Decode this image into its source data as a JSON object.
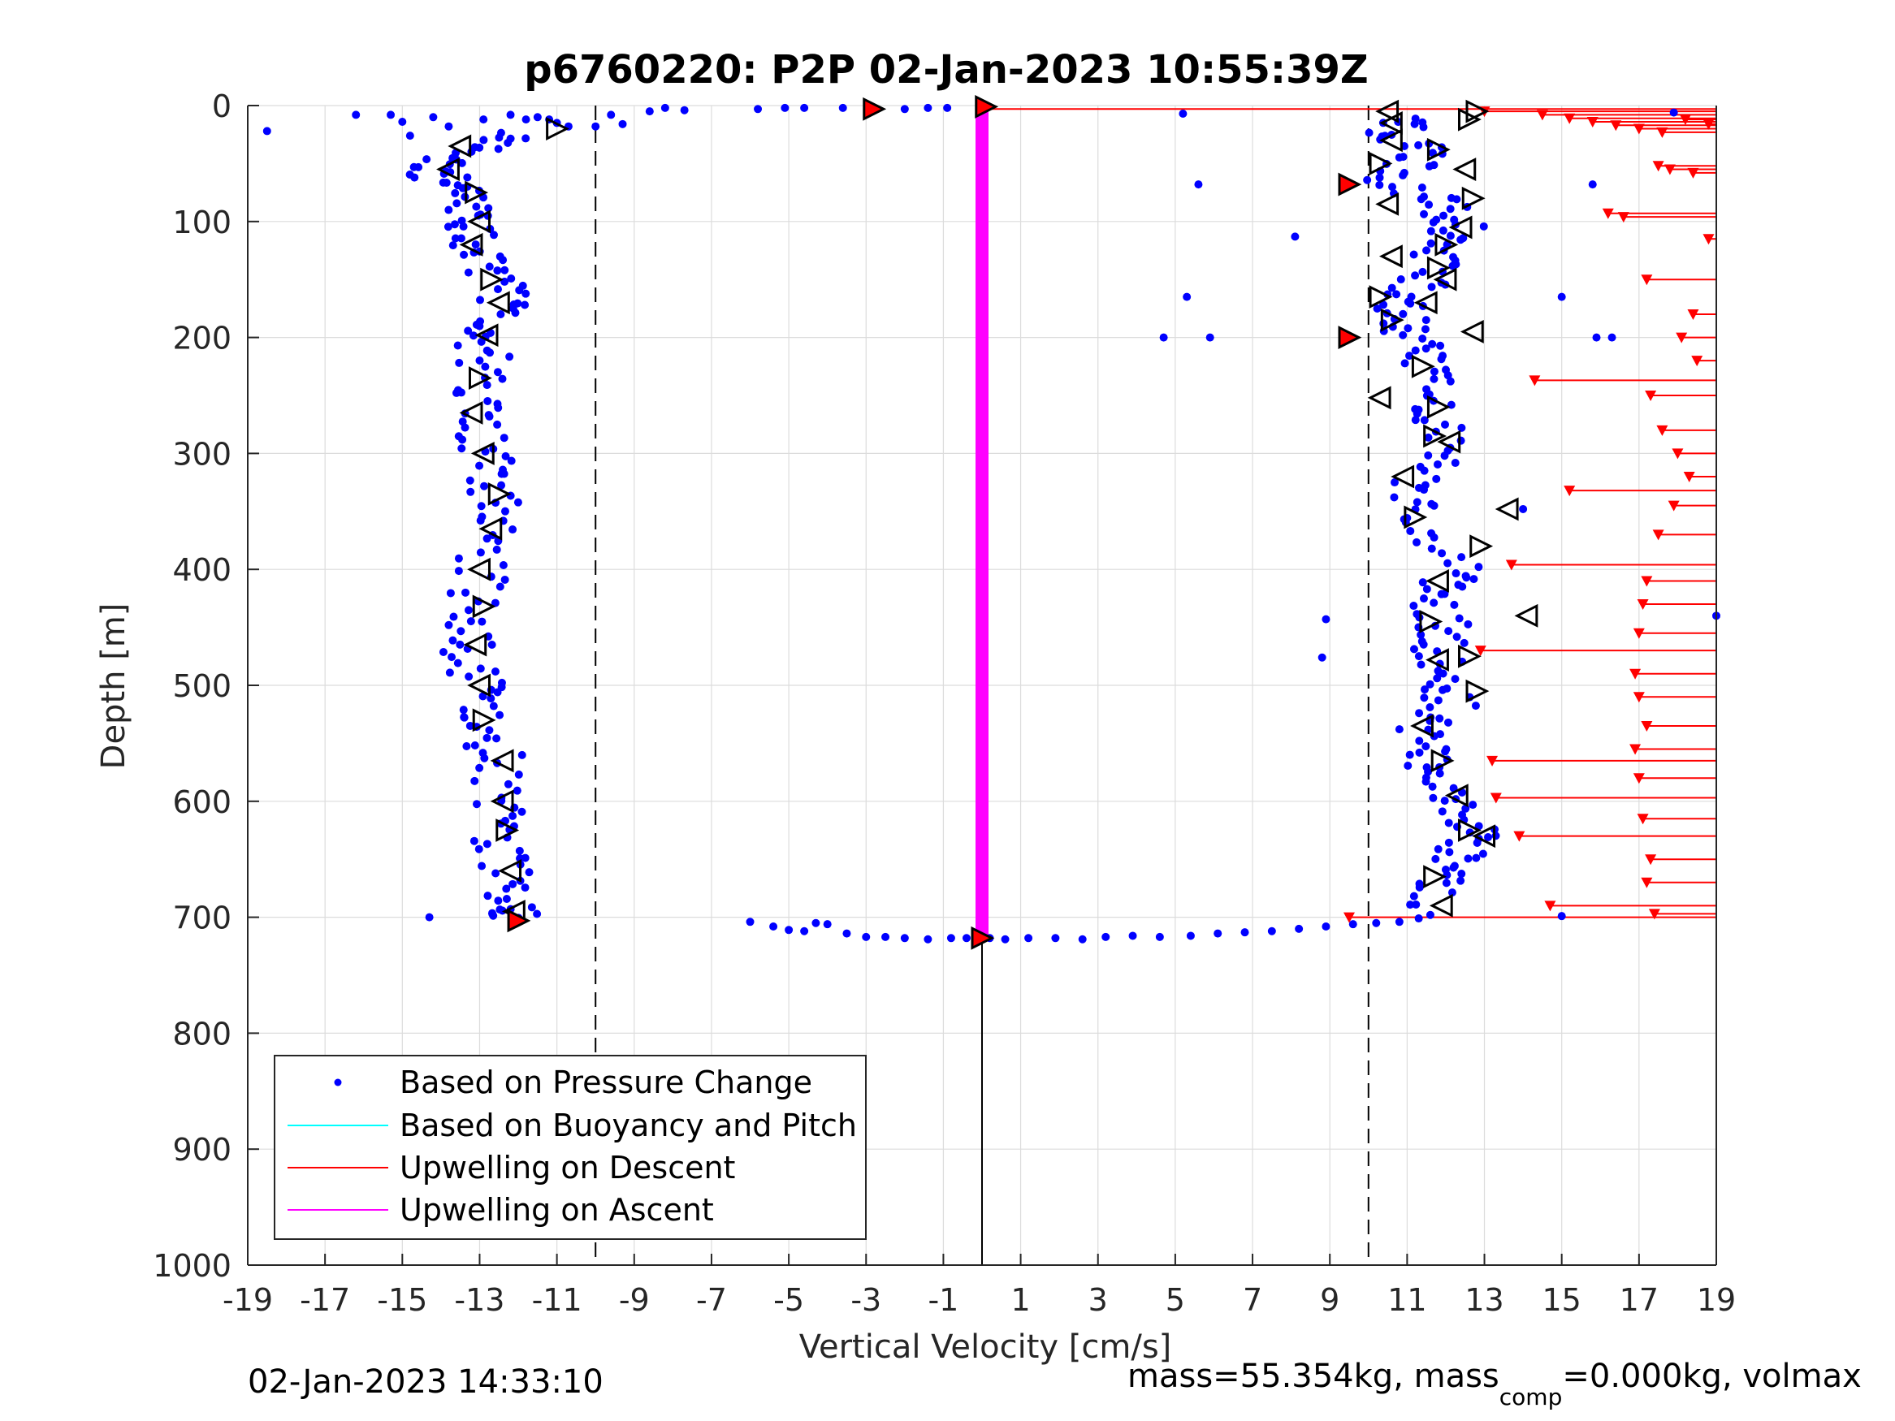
{
  "chart_data": {
    "type": "scatter",
    "title": "p6760220: P2P 02-Jan-2023 10:55:39Z",
    "xlabel": "Vertical Velocity [cm/s]",
    "ylabel": "Depth [m]",
    "xlim": [
      -19,
      19
    ],
    "ylim": [
      0,
      1000
    ],
    "y_reversed": true,
    "grid": true,
    "x_ticks": [
      -19,
      -17,
      -15,
      -13,
      -11,
      -9,
      -7,
      -5,
      -3,
      -1,
      1,
      3,
      5,
      7,
      9,
      11,
      13,
      15,
      17,
      19
    ],
    "x_tick_labels": [
      "-19",
      "-17",
      "-15",
      "-13",
      "-11",
      "-9",
      "-7",
      "-5",
      "-3",
      "-1",
      "1",
      "3",
      "5",
      "7",
      "9",
      "11",
      "13",
      "15",
      "17",
      "19"
    ],
    "y_ticks": [
      0,
      100,
      200,
      300,
      400,
      500,
      600,
      700,
      800,
      900,
      1000
    ],
    "y_tick_labels": [
      "0",
      "100",
      "200",
      "300",
      "400",
      "500",
      "600",
      "700",
      "800",
      "900",
      "1000"
    ],
    "reference_lines": {
      "dashed_x": [
        -10,
        10
      ],
      "solid_x": 0,
      "solid_x_depth_range": [
        720,
        1000
      ]
    },
    "legend": {
      "placement": "bottom-left",
      "entries": [
        {
          "label": "Based on Pressure Change",
          "marker": "dot",
          "color": "#0000ff"
        },
        {
          "label": "Based on Buoyancy and Pitch",
          "marker": "line",
          "color": "#00ffff"
        },
        {
          "label": "Upwelling on Descent",
          "marker": "line",
          "color": "#ff0000"
        },
        {
          "label": "Upwelling on Ascent",
          "marker": "line",
          "color": "#ff00ff"
        }
      ]
    },
    "colors": {
      "pressure": "#0000ff",
      "descent_upwelling": "#ff0000",
      "ascent_upwelling": "#ff00ff",
      "marker_fill": "#ff0000",
      "grid": "#dcdcdc",
      "axis": "#262626"
    },
    "series": [
      {
        "name": "Based on Pressure Change",
        "kind": "scatter",
        "surface_points": [
          [
            -18.5,
            22
          ],
          [
            -16.2,
            8
          ],
          [
            -15.3,
            8
          ],
          [
            -15.0,
            14
          ],
          [
            -14.8,
            26
          ],
          [
            -14.2,
            10
          ],
          [
            -13.8,
            18
          ],
          [
            -12.9,
            12
          ],
          [
            -12.2,
            8
          ],
          [
            -11.8,
            12
          ],
          [
            -11.5,
            10
          ],
          [
            -11.2,
            12
          ],
          [
            -11.0,
            15
          ],
          [
            -10.7,
            18
          ],
          [
            -10.0,
            18
          ],
          [
            -9.6,
            8
          ],
          [
            -9.3,
            16
          ],
          [
            -8.6,
            5
          ],
          [
            -8.2,
            2
          ],
          [
            -7.7,
            4
          ],
          [
            -5.8,
            3
          ],
          [
            -5.1,
            2
          ],
          [
            -4.6,
            2
          ],
          [
            -3.6,
            2
          ],
          [
            -2.8,
            4
          ],
          [
            -2.0,
            3
          ],
          [
            -1.4,
            2
          ],
          [
            -0.9,
            2
          ],
          [
            5.2,
            7
          ],
          [
            5.6,
            68
          ],
          [
            8.1,
            113
          ],
          [
            5.3,
            165
          ],
          [
            4.7,
            200
          ],
          [
            5.9,
            200
          ],
          [
            8.9,
            443
          ],
          [
            8.8,
            476
          ],
          [
            15.0,
            165
          ],
          [
            15.8,
            68
          ],
          [
            15.9,
            200
          ],
          [
            16.3,
            200
          ],
          [
            15.0,
            699
          ],
          [
            17.9,
            6
          ],
          [
            19.0,
            440
          ],
          [
            -14.3,
            700
          ],
          [
            14.0,
            348
          ]
        ],
        "bottom_points": [
          [
            -6.0,
            704
          ],
          [
            -5.4,
            708
          ],
          [
            -5.0,
            711
          ],
          [
            -4.6,
            712
          ],
          [
            -4.3,
            705
          ],
          [
            -4.0,
            706
          ],
          [
            -3.5,
            714
          ],
          [
            -3.0,
            717
          ],
          [
            -2.5,
            717
          ],
          [
            -2.0,
            718
          ],
          [
            -1.4,
            719
          ],
          [
            -0.8,
            718
          ],
          [
            -0.4,
            718
          ],
          [
            0.2,
            718
          ],
          [
            0.6,
            719
          ],
          [
            1.2,
            718
          ],
          [
            1.9,
            718
          ],
          [
            2.6,
            719
          ],
          [
            3.2,
            717
          ],
          [
            3.9,
            716
          ],
          [
            4.6,
            717
          ],
          [
            5.4,
            716
          ],
          [
            6.1,
            714
          ],
          [
            6.8,
            713
          ],
          [
            7.5,
            712
          ],
          [
            8.2,
            710
          ],
          [
            8.9,
            708
          ],
          [
            9.6,
            706
          ],
          [
            10.2,
            705
          ],
          [
            10.8,
            704
          ],
          [
            11.3,
            701
          ],
          [
            11.6,
            698
          ]
        ],
        "descent_profile": [
          [
            -12.0,
            25
          ],
          [
            -13.3,
            40
          ],
          [
            -14.5,
            55
          ],
          [
            -13.6,
            70
          ],
          [
            -13.1,
            90
          ],
          [
            -13.3,
            110
          ],
          [
            -12.8,
            135
          ],
          [
            -12.4,
            160
          ],
          [
            -12.6,
            185
          ],
          [
            -12.9,
            210
          ],
          [
            -13.0,
            240
          ],
          [
            -13.2,
            270
          ],
          [
            -12.9,
            300
          ],
          [
            -12.6,
            330
          ],
          [
            -12.8,
            360
          ],
          [
            -13.0,
            400
          ],
          [
            -13.2,
            440
          ],
          [
            -13.3,
            470
          ],
          [
            -13.1,
            500
          ],
          [
            -12.9,
            530
          ],
          [
            -12.6,
            560
          ],
          [
            -12.4,
            600
          ],
          [
            -12.5,
            630
          ],
          [
            -12.3,
            660
          ],
          [
            -12.2,
            690
          ],
          [
            -12.2,
            700
          ]
        ],
        "ascent_profile": [
          [
            11.7,
            690
          ],
          [
            11.8,
            660
          ],
          [
            12.5,
            640
          ],
          [
            12.7,
            620
          ],
          [
            11.9,
            595
          ],
          [
            11.7,
            570
          ],
          [
            11.2,
            545
          ],
          [
            12.1,
            520
          ],
          [
            11.6,
            495
          ],
          [
            11.8,
            470
          ],
          [
            11.9,
            445
          ],
          [
            11.8,
            420
          ],
          [
            12.4,
            400
          ],
          [
            11.2,
            360
          ],
          [
            10.8,
            330
          ],
          [
            12.2,
            300
          ],
          [
            11.8,
            270
          ],
          [
            11.5,
            240
          ],
          [
            11.3,
            210
          ],
          [
            10.9,
            190
          ],
          [
            10.7,
            170
          ],
          [
            11.5,
            150
          ],
          [
            11.7,
            125
          ],
          [
            12.3,
            105
          ],
          [
            12.0,
            85
          ],
          [
            10.4,
            65
          ],
          [
            11.5,
            45
          ],
          [
            10.6,
            25
          ],
          [
            11.0,
            10
          ]
        ]
      },
      {
        "name": "Upwelling on Descent",
        "kind": "stems",
        "color": "#ff0000",
        "base_velocity": 19.0,
        "points": [
          [
            0.0,
            3
          ],
          [
            13.0,
            5
          ],
          [
            14.5,
            8
          ],
          [
            15.2,
            11
          ],
          [
            15.8,
            14
          ],
          [
            16.4,
            17
          ],
          [
            17.0,
            20
          ],
          [
            17.6,
            23
          ],
          [
            18.2,
            12
          ],
          [
            18.8,
            16
          ],
          [
            17.5,
            52
          ],
          [
            17.8,
            55
          ],
          [
            18.4,
            58
          ],
          [
            16.2,
            93
          ],
          [
            16.6,
            96
          ],
          [
            18.8,
            115
          ],
          [
            17.2,
            150
          ],
          [
            18.4,
            180
          ],
          [
            18.1,
            200
          ],
          [
            18.5,
            220
          ],
          [
            14.3,
            237
          ],
          [
            17.3,
            250
          ],
          [
            17.6,
            280
          ],
          [
            18.0,
            300
          ],
          [
            18.3,
            320
          ],
          [
            15.2,
            332
          ],
          [
            17.9,
            345
          ],
          [
            17.5,
            370
          ],
          [
            13.7,
            396
          ],
          [
            17.2,
            410
          ],
          [
            17.1,
            430
          ],
          [
            17.0,
            455
          ],
          [
            12.9,
            470
          ],
          [
            16.9,
            490
          ],
          [
            17.0,
            510
          ],
          [
            17.2,
            535
          ],
          [
            16.9,
            555
          ],
          [
            13.2,
            565
          ],
          [
            17.0,
            580
          ],
          [
            13.3,
            597
          ],
          [
            17.1,
            615
          ],
          [
            13.9,
            630
          ],
          [
            17.3,
            650
          ],
          [
            17.2,
            670
          ],
          [
            14.7,
            690
          ],
          [
            17.4,
            697
          ],
          [
            9.5,
            700
          ]
        ]
      },
      {
        "name": "Upwelling on Ascent",
        "kind": "band",
        "color": "#ff00ff",
        "velocity": 0.0,
        "depth_range": [
          3,
          720
        ]
      }
    ],
    "markers": {
      "red_filled": [
        [
          -2.8,
          3
        ],
        [
          0.1,
          1
        ],
        [
          9.5,
          68
        ],
        [
          9.5,
          200
        ],
        [
          -12.0,
          703
        ],
        [
          0.0,
          718
        ]
      ],
      "open_triangles_descent": [
        [
          -11.0,
          20
        ],
        [
          -13.5,
          35
        ],
        [
          -13.8,
          55
        ],
        [
          -13.1,
          75
        ],
        [
          -13.0,
          100
        ],
        [
          -13.2,
          120
        ],
        [
          -12.7,
          150
        ],
        [
          -12.5,
          170
        ],
        [
          -12.8,
          198
        ],
        [
          -13.0,
          235
        ],
        [
          -13.2,
          265
        ],
        [
          -12.9,
          300
        ],
        [
          -12.5,
          335
        ],
        [
          -12.7,
          365
        ],
        [
          -13.0,
          400
        ],
        [
          -12.9,
          432
        ],
        [
          -13.1,
          465
        ],
        [
          -13.0,
          500
        ],
        [
          -12.9,
          530
        ],
        [
          -12.4,
          565
        ],
        [
          -12.4,
          600
        ],
        [
          -12.3,
          625
        ],
        [
          -12.2,
          660
        ],
        [
          -12.1,
          695
        ]
      ],
      "open_triangles_ascent": [
        [
          10.5,
          5
        ],
        [
          12.8,
          5
        ],
        [
          10.6,
          15
        ],
        [
          12.6,
          12
        ],
        [
          10.6,
          30
        ],
        [
          11.8,
          38
        ],
        [
          12.5,
          55
        ],
        [
          10.3,
          50
        ],
        [
          10.5,
          85
        ],
        [
          12.7,
          80
        ],
        [
          12.4,
          105
        ],
        [
          12.0,
          120
        ],
        [
          10.6,
          130
        ],
        [
          11.8,
          140
        ],
        [
          12.0,
          150
        ],
        [
          10.3,
          165
        ],
        [
          11.5,
          170
        ],
        [
          10.6,
          185
        ],
        [
          12.7,
          195
        ],
        [
          11.4,
          225
        ],
        [
          10.3,
          252
        ],
        [
          11.8,
          260
        ],
        [
          12.1,
          290
        ],
        [
          11.7,
          285
        ],
        [
          10.9,
          320
        ],
        [
          11.2,
          355
        ],
        [
          13.6,
          348
        ],
        [
          12.9,
          380
        ],
        [
          11.8,
          410
        ],
        [
          11.6,
          445
        ],
        [
          14.1,
          440
        ],
        [
          12.6,
          475
        ],
        [
          11.8,
          478
        ],
        [
          12.8,
          505
        ],
        [
          11.4,
          535
        ],
        [
          11.9,
          565
        ],
        [
          12.3,
          595
        ],
        [
          12.6,
          625
        ],
        [
          13.0,
          630
        ],
        [
          11.7,
          665
        ],
        [
          11.9,
          690
        ]
      ]
    }
  },
  "footer": {
    "timestamp": "02-Jan-2023 14:33:10",
    "mass_text_main": "mass=55.354kg, mass",
    "mass_text_sub": "comp",
    "mass_text_tail": "=0.000kg, volmax"
  }
}
